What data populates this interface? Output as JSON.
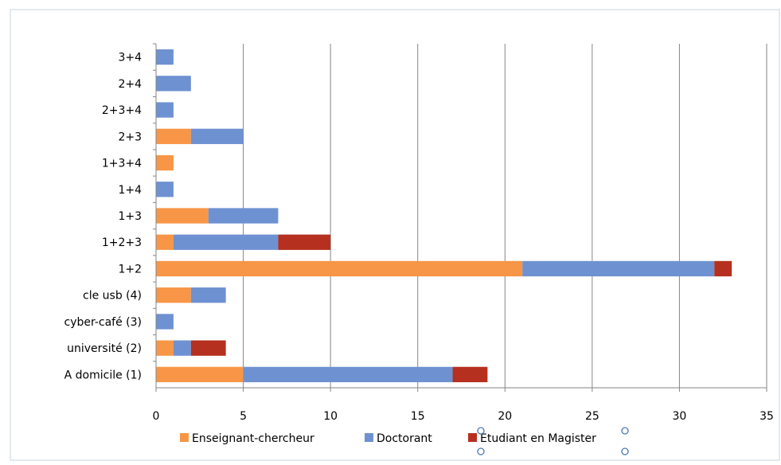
{
  "chart_data": {
    "type": "bar",
    "orientation": "horizontal",
    "stacked": true,
    "categories": [
      "3+4",
      "2+4",
      "2+3+4",
      "2+3",
      "1+3+4",
      "1+4",
      "1+3",
      "1+2+3",
      "1+2",
      "cle usb (4)",
      "cyber-café (3)",
      "université (2)",
      "A domicile (1)"
    ],
    "series": [
      {
        "name": "Enseignant-chercheur",
        "color": "#F79646",
        "values": [
          0,
          0,
          0,
          2,
          1,
          0,
          3,
          1,
          21,
          2,
          0,
          1,
          5
        ]
      },
      {
        "name": "Doctorant",
        "color": "#6E91D2",
        "values": [
          1,
          2,
          1,
          3,
          0,
          1,
          4,
          6,
          11,
          2,
          1,
          1,
          12
        ]
      },
      {
        "name": "Etudiant en Magister",
        "color": "#B5301E",
        "values": [
          0,
          0,
          0,
          0,
          0,
          0,
          0,
          3,
          1,
          0,
          0,
          2,
          2
        ]
      }
    ],
    "x_ticks": [
      0,
      5,
      10,
      15,
      20,
      25,
      30,
      35
    ],
    "xlim": [
      0,
      35
    ],
    "grid": "vertical",
    "legend": "bottom"
  }
}
